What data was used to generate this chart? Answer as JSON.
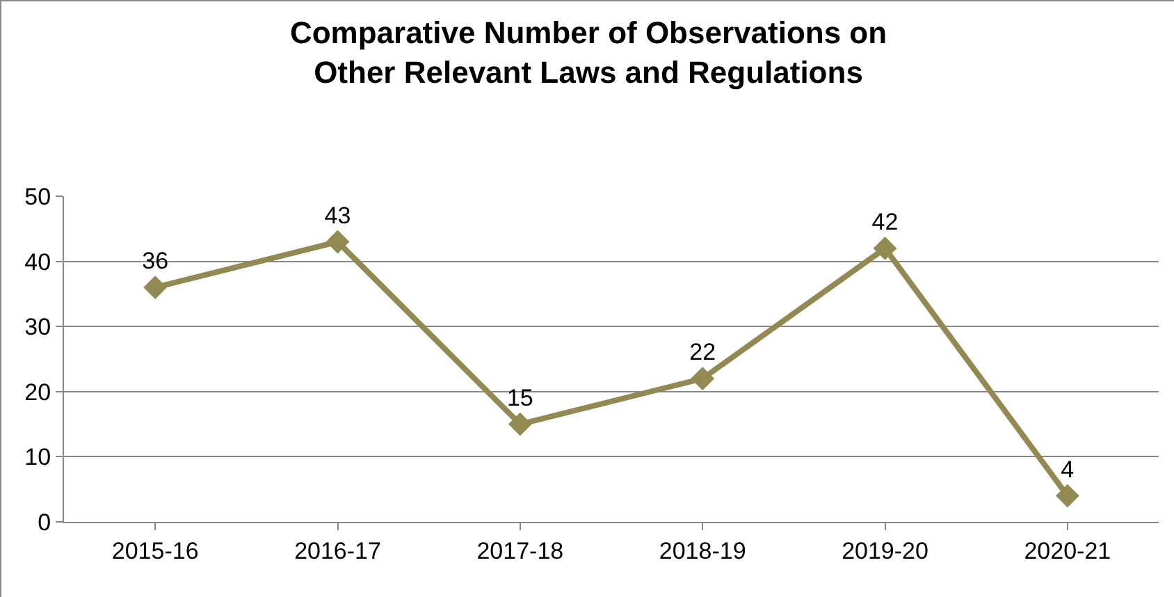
{
  "chart_data": {
    "type": "line",
    "title": "Comparative Number of Observations on Other Relevant Laws and Regulations",
    "categories": [
      "2015-16",
      "2016-17",
      "2017-18",
      "2018-19",
      "2019-20",
      "2020-21"
    ],
    "series": [
      {
        "color": "#938953",
        "values": [
          36,
          43,
          15,
          22,
          42,
          4
        ]
      }
    ],
    "ylim": [
      0,
      50
    ],
    "yticks": [
      0,
      10,
      20,
      30,
      40,
      50
    ],
    "grid": "y",
    "marker": "diamond",
    "line_style": "solid",
    "data_labels": true
  }
}
